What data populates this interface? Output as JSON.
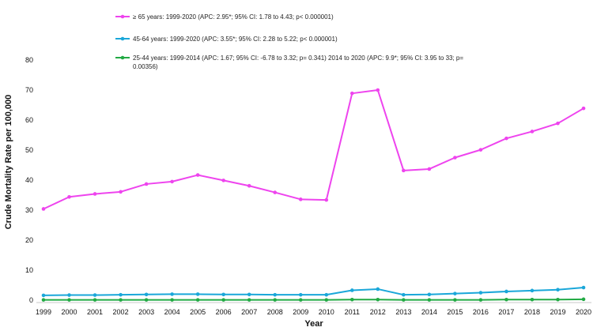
{
  "chart_data": {
    "type": "line",
    "title": "",
    "xlabel": "Year",
    "ylabel": "Crude Mortality Rate per  100,000",
    "ylim": [
      0,
      80
    ],
    "yticks": [
      0,
      10,
      20,
      30,
      40,
      50,
      60,
      70,
      80
    ],
    "grid": false,
    "legend_position": "top-left",
    "categories": [
      "1999",
      "2000",
      "2001",
      "2002",
      "2003",
      "2004",
      "2005",
      "2006",
      "2007",
      "2008",
      "2009",
      "2010",
      "2011",
      "2012",
      "2013",
      "2014",
      "2015",
      "2016",
      "2017",
      "2018",
      "2019",
      "2020"
    ],
    "series": [
      {
        "name": "≥ 65 years: 1999-2020 (APC: 2.95*; 95% CI: 1.78 to 4.43; p< 0.000001)",
        "legend_lines": [
          "≥ 65 years: 1999-2020 (APC: 2.95*; 95% CI: 1.78 to 4.43; p< 0.000001)"
        ],
        "color": "#ee44ee",
        "values": [
          30.4,
          34.4,
          35.4,
          36.1,
          38.7,
          39.5,
          41.7,
          39.9,
          38.1,
          35.9,
          33.6,
          33.4,
          68.9,
          70.0,
          43.2,
          43.7,
          47.5,
          50.1,
          53.9,
          56.2,
          58.9,
          63.9
        ]
      },
      {
        "name": "45-64 years: 1999-2020 (APC: 3.55*; 95% CI: 2.28 to 5.22; p< 0.000001)",
        "legend_lines": [
          "45-64 years: 1999-2020 (APC: 3.55*; 95% CI: 2.28 to 5.22; p< 0.000001)"
        ],
        "color": "#1aa7d9",
        "values": [
          1.6,
          1.7,
          1.7,
          1.8,
          1.9,
          2.0,
          2.0,
          1.9,
          1.9,
          1.8,
          1.8,
          1.8,
          3.3,
          3.7,
          1.8,
          1.9,
          2.2,
          2.5,
          2.9,
          3.2,
          3.5,
          4.2
        ]
      },
      {
        "name": "25-44 years: 1999-2014 (APC: 1.67; 95% CI: -6.78 to 3.32; p= 0.341) 2014 to 2020 (APC: 9.9*; 95% CI: 3.95 to 33; p= 0.00356)",
        "legend_lines": [
          "25-44 years: 1999-2014 (APC: 1.67; 95% CI: -6.78 to 3.32; p= 0.341) 2014 to 2020 (APC: 9.9*; 95% CI: 3.95 to 33; p=",
          "0.00356)"
        ],
        "color": "#22aa44",
        "values": [
          0.1,
          0.1,
          0.1,
          0.1,
          0.1,
          0.1,
          0.1,
          0.1,
          0.1,
          0.1,
          0.1,
          0.1,
          0.2,
          0.2,
          0.1,
          0.1,
          0.1,
          0.1,
          0.2,
          0.2,
          0.2,
          0.3
        ]
      }
    ]
  }
}
